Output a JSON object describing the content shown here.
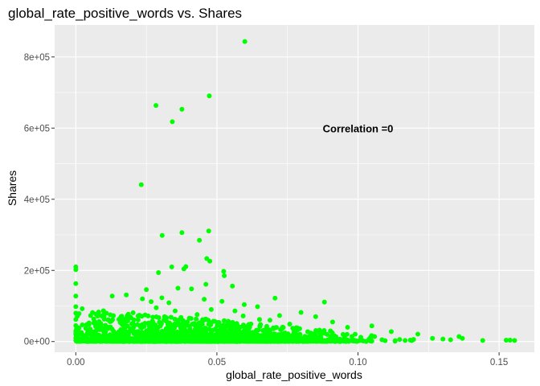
{
  "chart_data": {
    "type": "scatter",
    "title": "global_rate_positive_words vs. Shares",
    "xlabel": "global_rate_positive_words",
    "ylabel": "Shares",
    "xlim": [
      -0.0075,
      0.1625
    ],
    "ylim": [
      -30000,
      890000
    ],
    "x_ticks": [
      0.0,
      0.05,
      0.1,
      0.15
    ],
    "x_tick_labels": [
      "0.00",
      "0.05",
      "0.10",
      "0.15"
    ],
    "y_ticks": [
      0,
      200000,
      400000,
      600000,
      800000
    ],
    "y_tick_labels": [
      "0e+00",
      "2e+05",
      "4e+05",
      "6e+05",
      "8e+05"
    ],
    "grid": true,
    "panel_background": "#ebebeb",
    "point_color": "#00ff00",
    "annotation": {
      "text": "Correlation =0",
      "x": 0.1,
      "y": 600000
    },
    "points": [
      [
        0.0599,
        843300
      ],
      [
        0.0473,
        690400
      ],
      [
        0.0284,
        663600
      ],
      [
        0.0376,
        652900
      ],
      [
        0.0342,
        617900
      ],
      [
        0.0232,
        441000
      ],
      [
        0.0471,
        310800
      ],
      [
        0.0376,
        306100
      ],
      [
        0.0306,
        298400
      ],
      [
        0.0438,
        284700
      ],
      [
        0.0464,
        233400
      ],
      [
        0.0475,
        226000
      ],
      [
        0.034,
        210000
      ],
      [
        0.039,
        210600
      ],
      [
        0.0383,
        204300
      ],
      [
        0.0524,
        197400
      ],
      [
        0.0293,
        193700
      ],
      [
        0.0526,
        185000
      ],
      [
        0.0,
        210000
      ],
      [
        0.0,
        202000
      ],
      [
        0.0,
        163000
      ],
      [
        0.0,
        128000
      ],
      [
        0.0,
        98000
      ],
      [
        0.0,
        80000
      ],
      [
        0.0,
        62000
      ],
      [
        0.0,
        45000
      ],
      [
        0.0,
        30000
      ],
      [
        0.0,
        20000
      ],
      [
        0.0,
        10000
      ],
      [
        0.0,
        3000
      ],
      [
        0.025,
        146000
      ],
      [
        0.0461,
        161000
      ],
      [
        0.0555,
        156000
      ],
      [
        0.041,
        148000
      ],
      [
        0.0362,
        150000
      ],
      [
        0.0179,
        131000
      ],
      [
        0.0129,
        128000
      ],
      [
        0.0236,
        120000
      ],
      [
        0.0305,
        123000
      ],
      [
        0.0455,
        119000
      ],
      [
        0.0518,
        113000
      ],
      [
        0.0597,
        104000
      ],
      [
        0.0706,
        122000
      ],
      [
        0.0798,
        82000
      ],
      [
        0.0881,
        111000
      ],
      [
        0.0644,
        98000
      ],
      [
        0.0722,
        73000
      ],
      [
        0.085,
        70000
      ],
      [
        0.091,
        55000
      ],
      [
        0.0963,
        40000
      ],
      [
        0.1049,
        44000
      ],
      [
        0.1118,
        28000
      ],
      [
        0.1212,
        21000
      ],
      [
        0.1264,
        9000
      ],
      [
        0.1301,
        7000
      ],
      [
        0.1358,
        14000
      ],
      [
        0.137,
        9000
      ],
      [
        0.1525,
        4000
      ],
      [
        0.1539,
        4000
      ],
      [
        0.1555,
        3000
      ],
      [
        0.1442,
        3000
      ],
      [
        0.1328,
        5000
      ],
      [
        0.1197,
        6000
      ],
      [
        0.1167,
        3000
      ],
      [
        0.1085,
        5000
      ],
      [
        0.101,
        12000
      ],
      [
        0.0947,
        20000
      ],
      [
        0.088,
        31000
      ],
      [
        0.0758,
        49000
      ],
      [
        0.0688,
        60000
      ],
      [
        0.0651,
        62000
      ],
      [
        0.0593,
        72000
      ],
      [
        0.0564,
        86000
      ],
      [
        0.048,
        90000
      ],
      [
        0.043,
        76000
      ],
      [
        0.0352,
        86000
      ],
      [
        0.0285,
        95000
      ],
      [
        0.0203,
        81000
      ],
      [
        0.0159,
        68000
      ],
      [
        0.0114,
        61000
      ],
      [
        0.0082,
        56000
      ],
      [
        0.0051,
        35000
      ],
      [
        0.004,
        22000
      ],
      [
        0.033,
        109000
      ],
      [
        0.0267,
        112000
      ]
    ]
  }
}
